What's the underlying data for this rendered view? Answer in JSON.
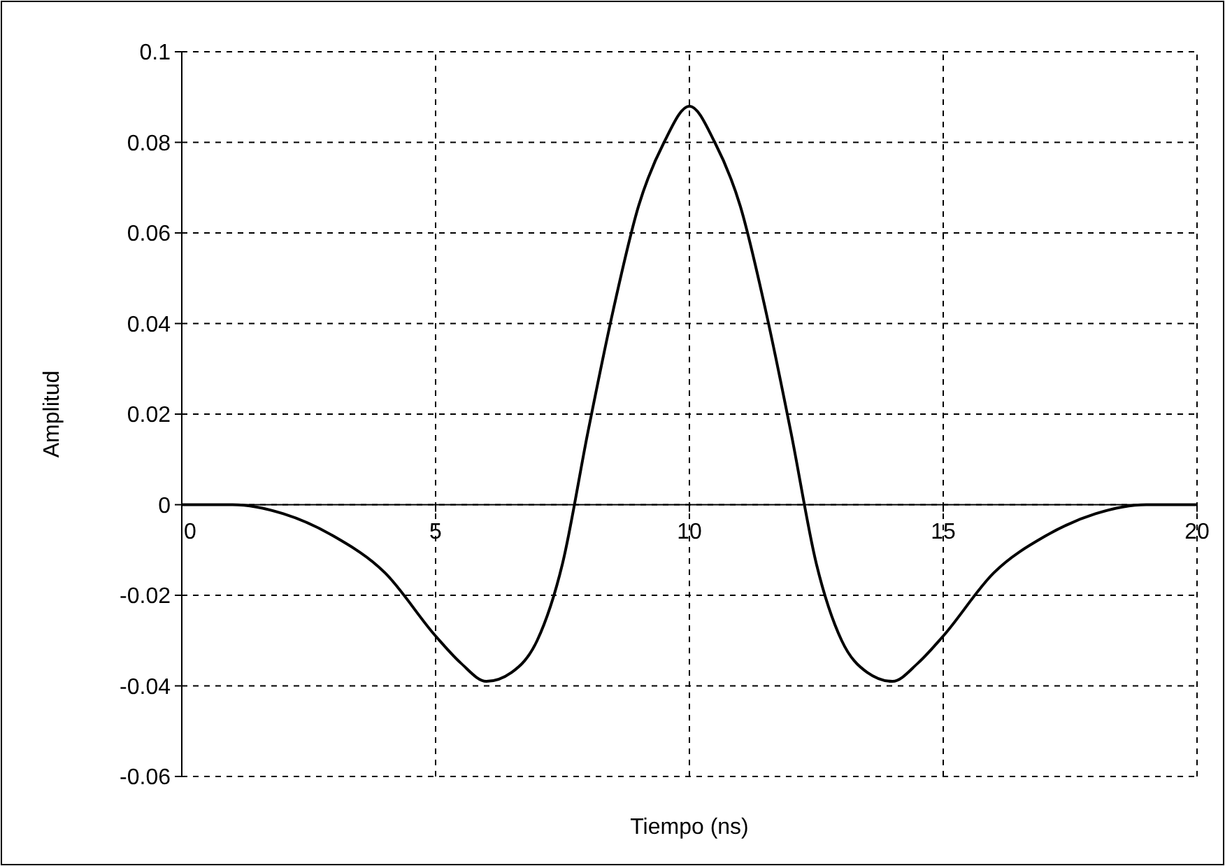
{
  "chart_data": {
    "type": "line",
    "xlabel": "Tiempo (ns)",
    "ylabel": "Amplitud",
    "x": [
      0,
      1,
      2,
      3,
      4,
      5,
      5.5,
      6,
      6.5,
      7,
      7.5,
      8,
      8.5,
      9,
      9.5,
      10,
      10.5,
      11,
      11.5,
      12,
      12.5,
      13,
      13.5,
      14,
      14.5,
      15,
      16,
      17,
      18,
      19,
      20
    ],
    "series": [
      {
        "color": "#000000",
        "values": [
          0,
          0,
          -0.002,
          -0.007,
          -0.015,
          -0.029,
          -0.035,
          -0.039,
          -0.037,
          -0.03,
          -0.013,
          0.016,
          0.043,
          0.066,
          0.08,
          0.088,
          0.08,
          0.066,
          0.043,
          0.016,
          -0.013,
          -0.03,
          -0.037,
          -0.039,
          -0.035,
          -0.029,
          -0.015,
          -0.007,
          -0.002,
          0,
          0
        ]
      }
    ],
    "xlim": [
      0,
      20
    ],
    "xticks": [
      0,
      5,
      10,
      15,
      20
    ],
    "ylim": [
      -0.06,
      0.1
    ],
    "yticks": [
      -0.06,
      -0.04,
      -0.02,
      0,
      0.02,
      0.04,
      0.06,
      0.08,
      0.1
    ],
    "grid": true,
    "marker": "none",
    "line_style": "solid"
  }
}
